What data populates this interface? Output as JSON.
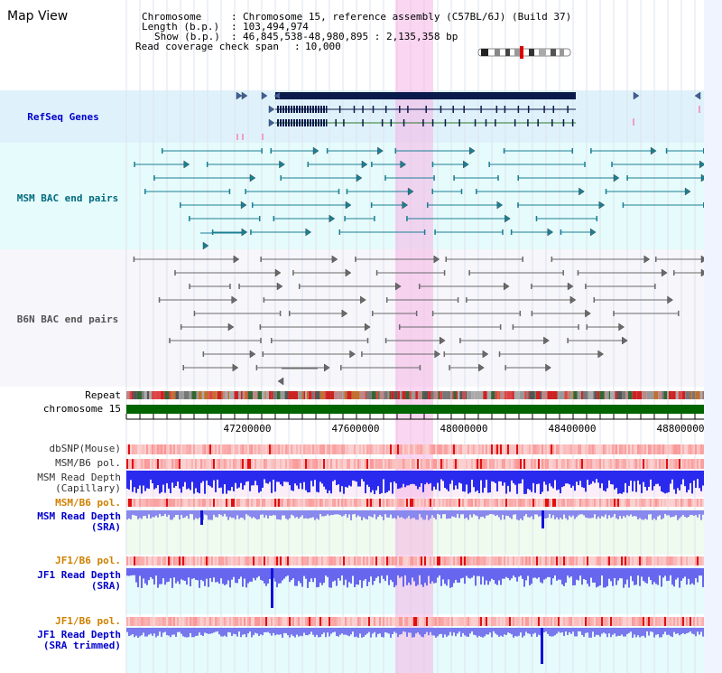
{
  "view_title": "Map View",
  "info": {
    "chromosome_key": "Chromosome",
    "chromosome_value": "Chromosome 15, reference assembly (C57BL/6J) (Build 37)",
    "length_key": "Length (b.p.)",
    "length_value": "103,494,974",
    "show_key": "Show (b.p.)",
    "show_value": "46,845,538-48,980,895 : 2,135,358 bp",
    "coverage_key": "Read coverage check span",
    "coverage_value": "10,000"
  },
  "tracks": {
    "refseq": "RefSeq Genes",
    "msm_bac": "MSM BAC end pairs",
    "b6n_bac": "B6N BAC end pairs",
    "repeat": "Repeat",
    "chromosome": "chromosome 15",
    "dbsnp": "dbSNP(Mouse)",
    "msm_b6_pol_1": "MSM/B6 pol.",
    "msm_depth_cap_1": "MSM Read Depth",
    "msm_depth_cap_2": "(Capillary)",
    "msm_b6_pol_2": "MSM/B6 pol.",
    "msm_depth_sra_1": "MSM Read Depth",
    "msm_depth_sra_2": "(SRA)",
    "jf1_b6_pol_1": "JF1/B6 pol.",
    "jf1_depth_sra_1": "JF1 Read Depth",
    "jf1_depth_sra_2": "(SRA)",
    "jf1_b6_pol_2": "JF1/B6 pol.",
    "jf1_depth_trim_1": "JF1 Read Depth",
    "jf1_depth_trim_2": "(SRA trimmed)"
  },
  "axis": {
    "ticks": [
      "47200000",
      "47600000",
      "48000000",
      "48400000",
      "48800000"
    ]
  },
  "colors": {
    "refseq_bg": "#dff2fb",
    "msm_bg": "#e6fbfb",
    "b6n_bg": "#f6f6fb",
    "highlight": "#f8d8f0",
    "label_blue": "#0000cc",
    "label_teal": "#006b80",
    "label_gray": "#555555",
    "label_orange": "#d08000",
    "gene_dark": "#0a1a4a",
    "chromosome_green": "#006400",
    "depth_blue": "#2222ee",
    "depth_light": "#8080f0"
  }
}
